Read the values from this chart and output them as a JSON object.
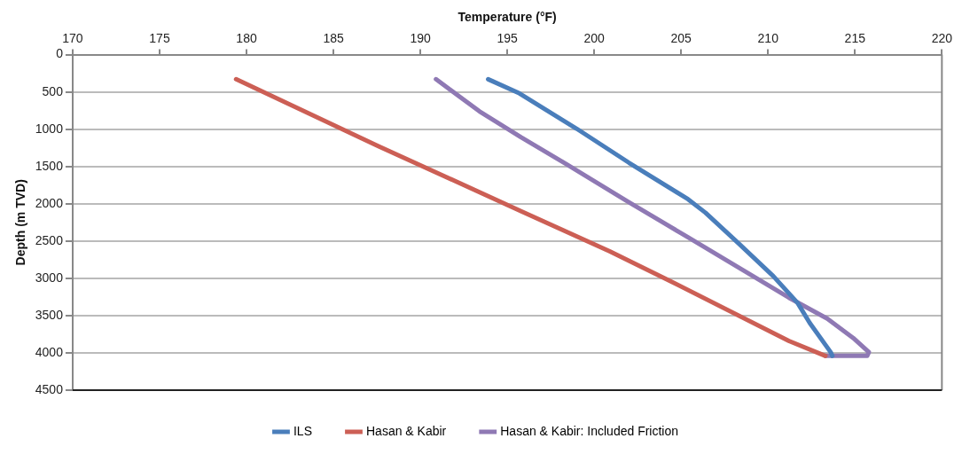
{
  "chart_data": {
    "type": "line",
    "xlabel": "Temperature (°F)",
    "ylabel": "Depth (m TVD)",
    "xlim": [
      170,
      220
    ],
    "xticks": [
      170,
      175,
      180,
      185,
      190,
      195,
      200,
      205,
      210,
      215,
      220
    ],
    "ylim": [
      4500,
      0
    ],
    "yticks": [
      0,
      500,
      1000,
      1500,
      2000,
      2500,
      3000,
      3500,
      4000,
      4500
    ],
    "grid": "y",
    "legend": "bottom",
    "marker": "none",
    "line_style": "solid",
    "series": [
      {
        "name": "ILS",
        "color": "#4a7ebb",
        "x": [
          193.9,
          195.7,
          199.0,
          202.0,
          205.4,
          206.4,
          208.3,
          210.3,
          211.7,
          212.4,
          213.6,
          213.7
        ],
        "values": [
          330,
          520,
          995,
          1450,
          1940,
          2120,
          2530,
          2970,
          3330,
          3600,
          3990,
          4040
        ]
      },
      {
        "name": "Hasan & Kabir",
        "color": "#cc5f55",
        "x": [
          179.4,
          187.6,
          195.8,
          200.9,
          204.4,
          211.2,
          213.3
        ],
        "values": [
          330,
          1230,
          2100,
          2640,
          3040,
          3840,
          4040
        ]
      },
      {
        "name": "Hasan & Kabir: Included Friction",
        "color": "#8f79b4",
        "x": [
          190.9,
          193.4,
          195.8,
          198.4,
          202.0,
          205.4,
          211.2,
          213.4,
          214.9,
          215.8,
          215.7,
          213.3
        ],
        "values": [
          330,
          760,
          1110,
          1470,
          1980,
          2450,
          3260,
          3540,
          3800,
          3990,
          4040,
          4040
        ]
      }
    ]
  }
}
